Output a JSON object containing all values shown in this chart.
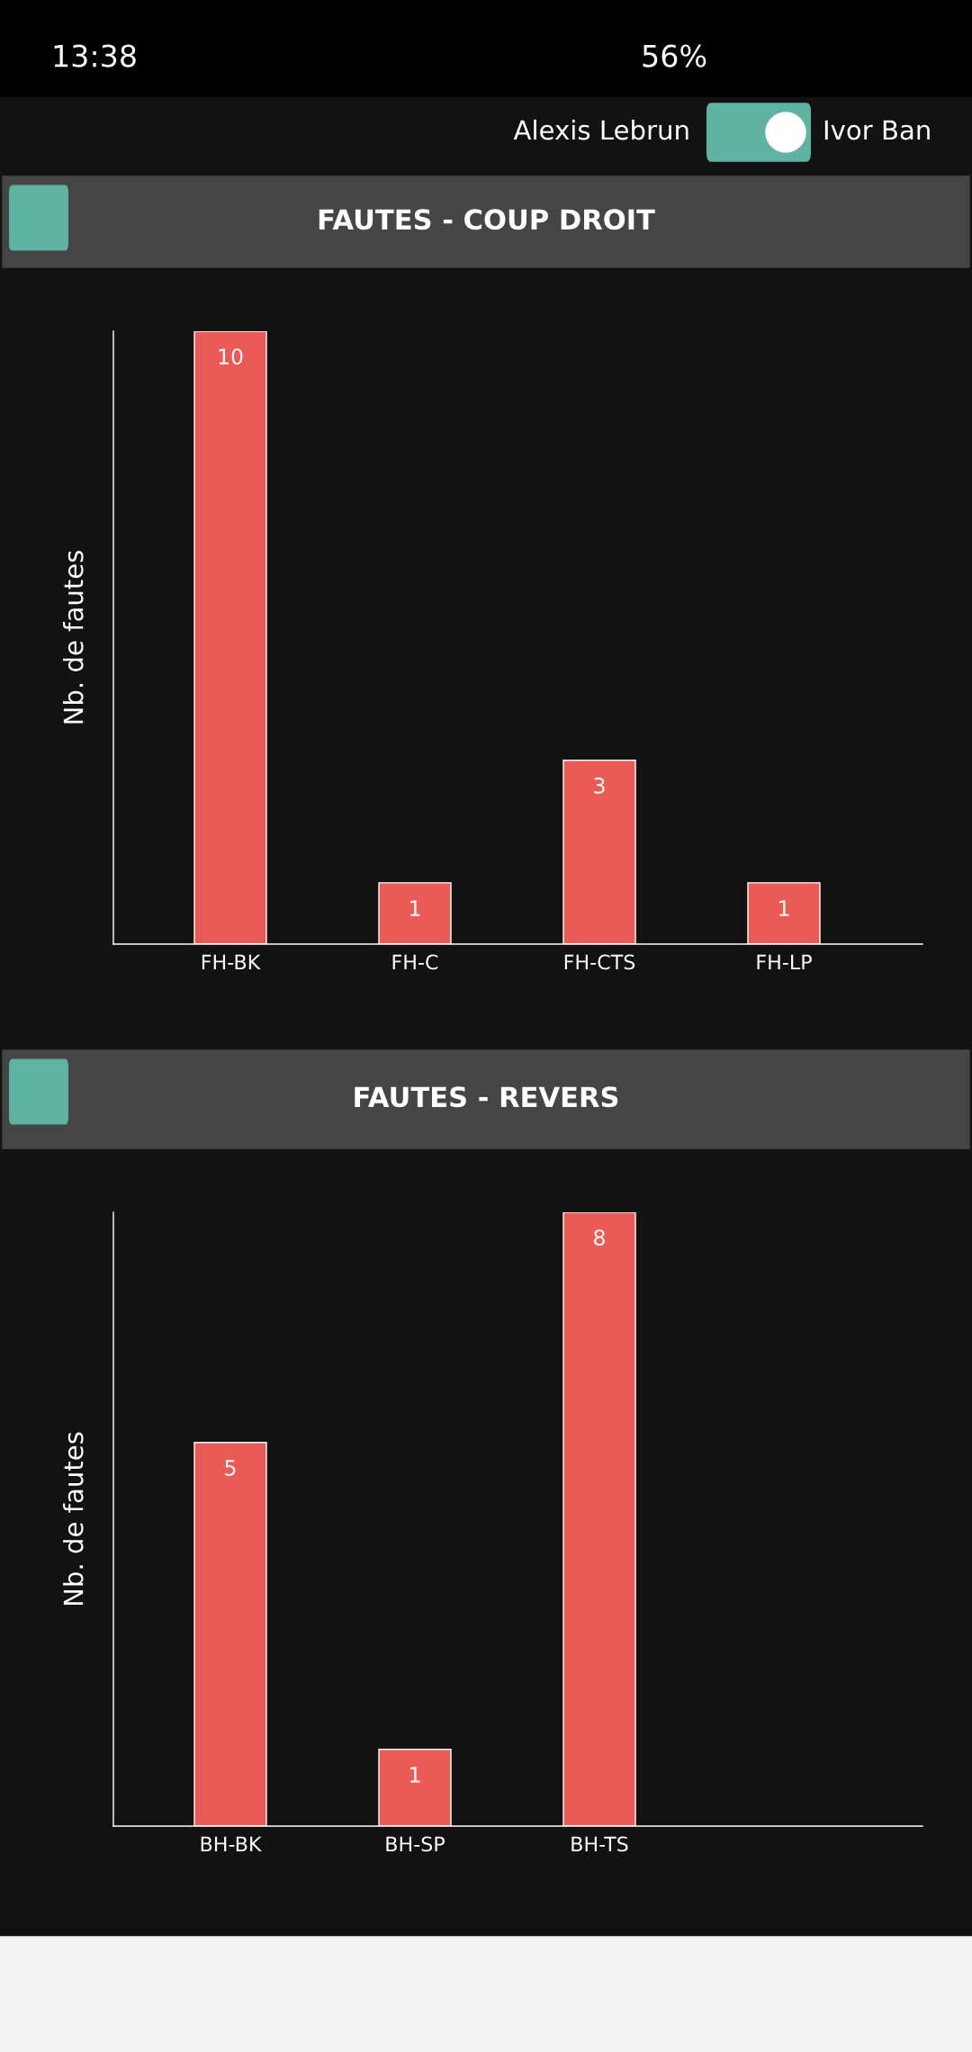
{
  "chart_data": [
    {
      "type": "bar",
      "title": "FAUTES - COUP DROIT",
      "ylabel": "Nb. de fautes",
      "categories": [
        "FH-BK",
        "FH-C",
        "FH-CTS",
        "FH-LP"
      ],
      "values": [
        10,
        1,
        3,
        1
      ],
      "color": "#eb5b55",
      "data_labels": true,
      "annotations": [
        "13:38",
        "56%",
        "Alexis Lebrun",
        "Ivor Ban"
      ]
    },
    {
      "type": "bar",
      "title": "FAUTES - REVERS",
      "ylabel": "Nb. de fautes",
      "categories": [
        "BH-BK",
        "BH-SP",
        "BH-TS"
      ],
      "values": [
        5,
        1,
        8
      ],
      "color": "#eb5b55",
      "data_labels": true
    }
  ]
}
